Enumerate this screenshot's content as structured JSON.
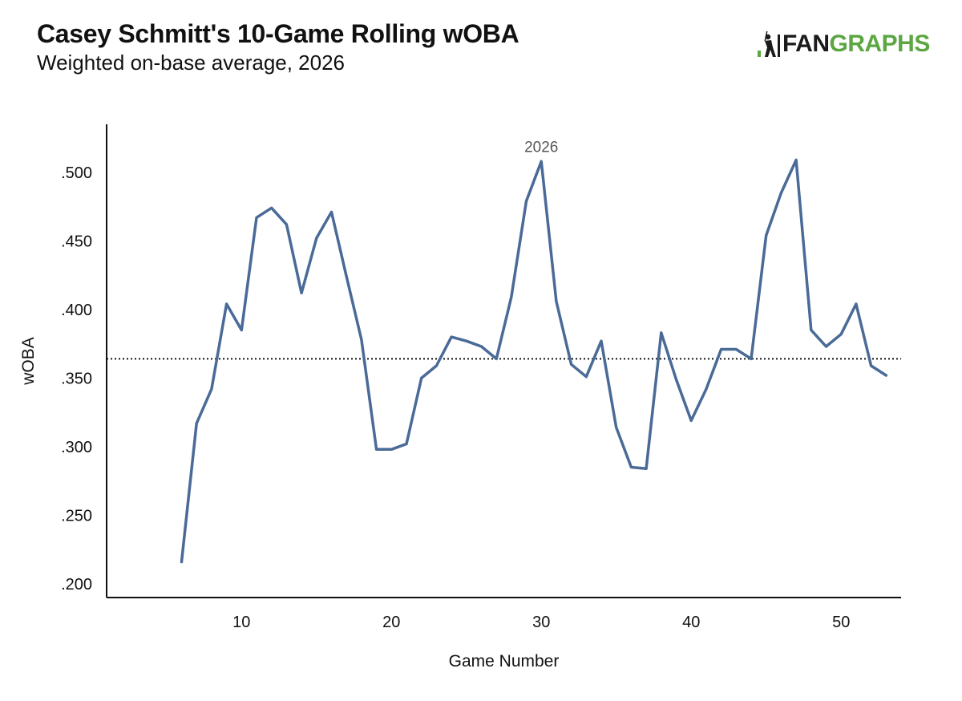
{
  "header": {
    "title": "Casey Schmitt's 10-Game Rolling wOBA",
    "subtitle": "Weighted on-base average, 2026",
    "logo": {
      "text_fan": "FAN",
      "text_graphs": "GRAPHS",
      "icon": "fangraphs-batter-icon"
    }
  },
  "colors": {
    "line": "#4a6a97",
    "axis": "#111111",
    "reference": "#111111",
    "logo_green": "#5ca643",
    "annotation": "#555555"
  },
  "chart_data": {
    "type": "line",
    "title": "Casey Schmitt's 10-Game Rolling wOBA",
    "subtitle": "Weighted on-base average, 2026",
    "xlabel": "Game Number",
    "ylabel": "wOBA",
    "xlim": [
      1,
      54
    ],
    "ylim": [
      0.19,
      0.535
    ],
    "xticks": [
      10,
      20,
      30,
      40,
      50
    ],
    "xtick_labels": [
      "10",
      "20",
      "30",
      "40",
      "50"
    ],
    "yticks": [
      0.2,
      0.25,
      0.3,
      0.35,
      0.4,
      0.45,
      0.5
    ],
    "ytick_labels": [
      ".200",
      ".250",
      ".300",
      ".350",
      ".400",
      ".450",
      ".500"
    ],
    "grid": false,
    "legend": "none",
    "reference_line": {
      "y": 0.364,
      "style": "dotted"
    },
    "annotations": [
      {
        "text": "2026",
        "x": 30,
        "y": 0.519
      }
    ],
    "series": [
      {
        "name": "2026",
        "x": [
          6,
          7,
          8,
          9,
          10,
          11,
          12,
          13,
          14,
          15,
          16,
          17,
          18,
          19,
          20,
          21,
          22,
          23,
          24,
          25,
          26,
          27,
          28,
          29,
          30,
          31,
          32,
          33,
          34,
          35,
          36,
          37,
          38,
          39,
          40,
          41,
          42,
          43,
          44,
          45,
          46,
          47,
          48,
          49,
          50,
          51,
          52,
          53
        ],
        "values": [
          0.216,
          0.317,
          0.342,
          0.404,
          0.385,
          0.467,
          0.474,
          0.462,
          0.412,
          0.452,
          0.471,
          0.424,
          0.378,
          0.298,
          0.298,
          0.302,
          0.35,
          0.359,
          0.38,
          0.377,
          0.373,
          0.364,
          0.409,
          0.479,
          0.508,
          0.406,
          0.36,
          0.351,
          0.377,
          0.314,
          0.285,
          0.284,
          0.383,
          0.349,
          0.319,
          0.342,
          0.371,
          0.371,
          0.364,
          0.454,
          0.485,
          0.509,
          0.385,
          0.373,
          0.382,
          0.404,
          0.359,
          0.352
        ]
      }
    ]
  }
}
